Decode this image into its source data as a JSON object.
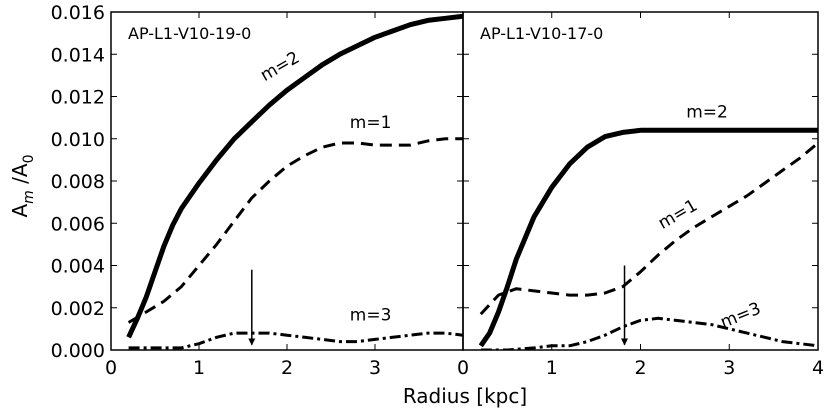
{
  "figure": {
    "xlabel": "Radius [kpc]",
    "ylabel_main": "A",
    "ylabel_sub1": "m",
    "ylabel_mid": " /A",
    "ylabel_sub2": "0"
  },
  "chart_data": [
    {
      "type": "line",
      "title": "AP-L1-V10-19-0",
      "xlabel": "Radius [kpc]",
      "ylabel": "A_m /A_0",
      "xlim": [
        0,
        4
      ],
      "ylim": [
        0,
        0.016
      ],
      "xticks": [
        0,
        1,
        2,
        3
      ],
      "xtick_labels": [
        "0",
        "1",
        "2",
        "3"
      ],
      "yticks": [
        0.0,
        0.002,
        0.004,
        0.006,
        0.008,
        0.01,
        0.012,
        0.014,
        0.016
      ],
      "ytick_labels": [
        "0.000",
        "0.002",
        "0.004",
        "0.006",
        "0.008",
        "0.010",
        "0.012",
        "0.014",
        "0.016"
      ],
      "grid": false,
      "legend": "none",
      "series": [
        {
          "name": "m=2",
          "style": "solid",
          "x": [
            0.2,
            0.3,
            0.4,
            0.5,
            0.6,
            0.7,
            0.8,
            1.0,
            1.2,
            1.4,
            1.6,
            1.8,
            2.0,
            2.2,
            2.4,
            2.6,
            2.8,
            3.0,
            3.2,
            3.4,
            3.6,
            3.8,
            4.0
          ],
          "y": [
            0.0006,
            0.0015,
            0.0025,
            0.0037,
            0.0049,
            0.0059,
            0.0067,
            0.0079,
            0.009,
            0.01,
            0.0108,
            0.0116,
            0.0123,
            0.0129,
            0.0135,
            0.014,
            0.0144,
            0.0148,
            0.0151,
            0.0154,
            0.0156,
            0.0157,
            0.0158
          ]
        },
        {
          "name": "m=1",
          "style": "dashed",
          "x": [
            0.2,
            0.4,
            0.6,
            0.8,
            1.0,
            1.2,
            1.4,
            1.6,
            1.8,
            2.0,
            2.2,
            2.4,
            2.6,
            2.8,
            3.0,
            3.2,
            3.4,
            3.6,
            3.8,
            4.0
          ],
          "y": [
            0.0013,
            0.0018,
            0.0023,
            0.003,
            0.004,
            0.005,
            0.0061,
            0.0072,
            0.008,
            0.0087,
            0.0092,
            0.0096,
            0.0098,
            0.0098,
            0.0097,
            0.0097,
            0.0097,
            0.0099,
            0.01,
            0.01
          ]
        },
        {
          "name": "m=3",
          "style": "dashdot",
          "x": [
            0.2,
            0.5,
            0.8,
            1.0,
            1.2,
            1.4,
            1.6,
            1.8,
            2.0,
            2.2,
            2.4,
            2.6,
            2.8,
            3.0,
            3.2,
            3.4,
            3.6,
            3.8,
            4.0
          ],
          "y": [
            0.0001,
            0.0001,
            0.0001,
            0.0003,
            0.0006,
            0.0008,
            0.0008,
            0.0008,
            0.0007,
            0.0006,
            0.0005,
            0.0004,
            0.0004,
            0.0005,
            0.0006,
            0.0007,
            0.0008,
            0.0008,
            0.0007
          ]
        }
      ],
      "annotations": [
        {
          "text": "m=2",
          "x": 1.95,
          "y": 0.0132,
          "rotation": -30
        },
        {
          "text": "m=1",
          "x": 2.95,
          "y": 0.0105,
          "rotation": 0
        },
        {
          "text": "m=3",
          "x": 2.95,
          "y": 0.0014,
          "rotation": 0
        }
      ],
      "arrow": {
        "x": 1.6,
        "y_start": 0.0038,
        "y_end": 0.0002
      }
    },
    {
      "type": "line",
      "title": "AP-L1-V10-17-0",
      "xlabel": "Radius [kpc]",
      "xlim": [
        0,
        4
      ],
      "ylim": [
        0,
        0.016
      ],
      "xticks": [
        0,
        1,
        2,
        3,
        4
      ],
      "xtick_labels": [
        "0",
        "1",
        "2",
        "3",
        "4"
      ],
      "grid": false,
      "legend": "none",
      "series": [
        {
          "name": "m=2",
          "style": "solid",
          "x": [
            0.2,
            0.3,
            0.4,
            0.5,
            0.6,
            0.8,
            1.0,
            1.2,
            1.4,
            1.6,
            1.8,
            2.0,
            2.2,
            2.5,
            3.0,
            3.5,
            3.8,
            4.0
          ],
          "y": [
            0.0002,
            0.0008,
            0.0018,
            0.003,
            0.0043,
            0.0063,
            0.0077,
            0.0088,
            0.0096,
            0.0101,
            0.0103,
            0.0104,
            0.0104,
            0.0104,
            0.0104,
            0.0104,
            0.0104,
            0.0104
          ]
        },
        {
          "name": "m=1",
          "style": "dashed",
          "x": [
            0.2,
            0.4,
            0.6,
            0.8,
            1.0,
            1.2,
            1.4,
            1.6,
            1.8,
            2.0,
            2.2,
            2.4,
            2.6,
            2.8,
            3.0,
            3.2,
            3.4,
            3.6,
            3.8,
            4.0
          ],
          "y": [
            0.0017,
            0.0026,
            0.0029,
            0.0028,
            0.0027,
            0.0026,
            0.0026,
            0.0027,
            0.003,
            0.0037,
            0.0045,
            0.0052,
            0.0058,
            0.0063,
            0.0068,
            0.0073,
            0.0079,
            0.0085,
            0.0091,
            0.0098
          ]
        },
        {
          "name": "m=3",
          "style": "dashdot",
          "x": [
            0.2,
            0.5,
            0.8,
            1.0,
            1.2,
            1.4,
            1.6,
            1.8,
            2.0,
            2.2,
            2.4,
            2.6,
            2.8,
            3.0,
            3.2,
            3.4,
            3.6,
            3.8,
            4.0
          ],
          "y": [
            0.0,
            0.0,
            0.0001,
            0.0002,
            0.0002,
            0.0004,
            0.0007,
            0.0011,
            0.0014,
            0.0015,
            0.0014,
            0.0013,
            0.0012,
            0.001,
            0.0008,
            0.0006,
            0.0004,
            0.0003,
            0.0002
          ]
        }
      ],
      "annotations": [
        {
          "text": "m=2",
          "x": 2.75,
          "y": 0.011,
          "rotation": 0
        },
        {
          "text": "m=1",
          "x": 2.45,
          "y": 0.0062,
          "rotation": -30
        },
        {
          "text": "m=3",
          "x": 3.15,
          "y": 0.0014,
          "rotation": -22
        }
      ],
      "arrow": {
        "x": 1.82,
        "y_start": 0.004,
        "y_end": 0.0002
      }
    }
  ]
}
